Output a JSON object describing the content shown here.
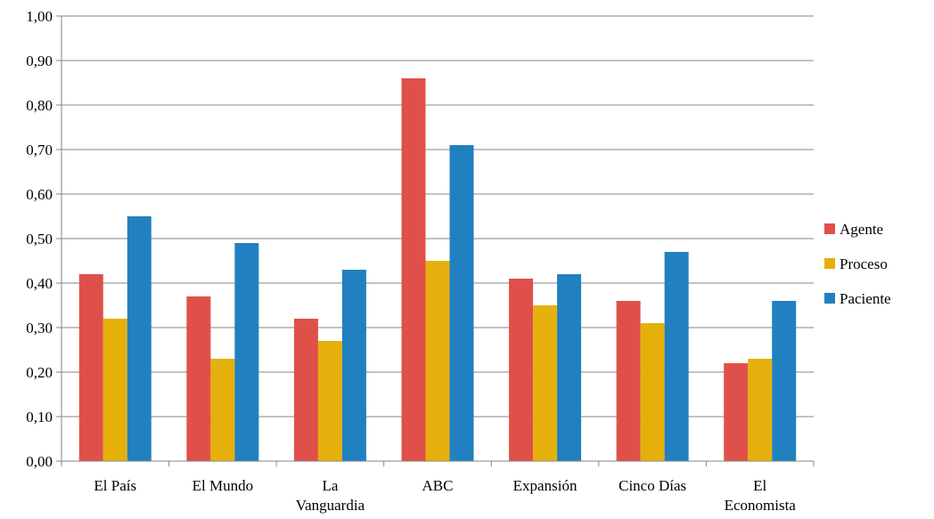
{
  "chart_data": {
    "type": "bar",
    "categories": [
      [
        "El País"
      ],
      [
        "El Mundo"
      ],
      [
        "La",
        "Vanguardia"
      ],
      [
        "ABC"
      ],
      [
        "Expansión"
      ],
      [
        "Cinco Días"
      ],
      [
        "El",
        "Economista"
      ]
    ],
    "series": [
      {
        "name": "Agente",
        "color": "#E0504A",
        "values": [
          0.42,
          0.37,
          0.32,
          0.86,
          0.41,
          0.36,
          0.22
        ]
      },
      {
        "name": "Proceso",
        "color": "#E6B00C",
        "values": [
          0.32,
          0.23,
          0.27,
          0.45,
          0.35,
          0.31,
          0.23
        ]
      },
      {
        "name": "Paciente",
        "color": "#2180C0",
        "values": [
          0.55,
          0.49,
          0.43,
          0.71,
          0.42,
          0.47,
          0.36
        ]
      }
    ],
    "ylim": [
      0,
      1
    ],
    "yticks": [
      "0,00",
      "0,10",
      "0,20",
      "0,30",
      "0,40",
      "0,50",
      "0,60",
      "0,70",
      "0,80",
      "0,90",
      "1,00"
    ],
    "grid": true,
    "legend_position": "right"
  }
}
